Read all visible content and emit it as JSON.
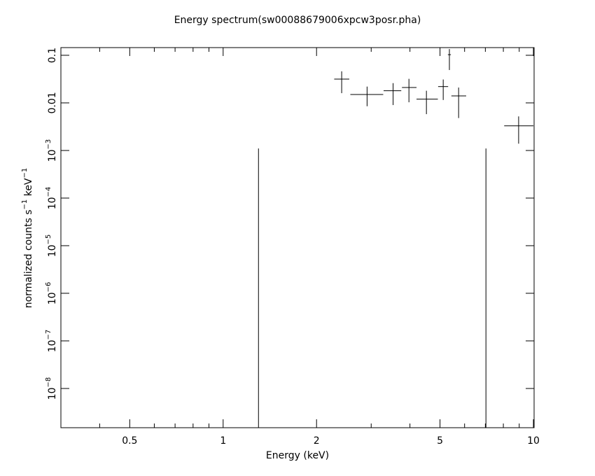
{
  "chart_data": {
    "type": "scatter",
    "title": "Energy spectrum(sw00088679006xpcw3posr.pha)",
    "xlabel": "Energy (keV)",
    "ylabel": [
      "normalized counts s",
      "−1",
      " keV",
      "−1"
    ],
    "log_x": true,
    "log_y": true,
    "xlim": [
      0.3,
      10.05
    ],
    "ylim": [
      1.5e-09,
      0.145
    ],
    "xticks": [
      0.5,
      1,
      2,
      5,
      10
    ],
    "xminor": [
      0.3,
      0.4,
      0.6,
      0.7,
      0.8,
      0.9,
      3,
      4,
      6,
      7,
      8,
      9
    ],
    "yticks": [
      0.1,
      0.01,
      {
        "value": 0.001,
        "label": "10",
        "exponent": "−3"
      },
      {
        "value": 0.0001,
        "label": "10",
        "exponent": "−4"
      },
      {
        "value": 1e-05,
        "label": "10",
        "exponent": "−5"
      },
      {
        "value": 1e-06,
        "label": "10",
        "exponent": "−6"
      },
      {
        "value": 1e-07,
        "label": "10",
        "exponent": "−7"
      },
      {
        "value": 1e-08,
        "label": "10",
        "exponent": "−8"
      }
    ],
    "color": "#000000",
    "points": {
      "x": [
        2.41,
        2.91,
        3.53,
        3.97,
        4.52,
        5.12,
        5.36,
        5.74,
        8.96
      ],
      "xlow": [
        2.28,
        2.57,
        3.29,
        3.77,
        4.2,
        4.93,
        5.3,
        5.44,
        8.05
      ],
      "xhigh": [
        2.55,
        3.28,
        3.75,
        4.2,
        4.92,
        5.31,
        5.42,
        6.07,
        10.0
      ],
      "y": [
        0.0316,
        0.015,
        0.018,
        0.021,
        0.012,
        0.022,
        0.103,
        0.014,
        0.0033
      ],
      "ylow": [
        0.016,
        0.0085,
        0.009,
        0.0103,
        0.0058,
        0.0115,
        0.049,
        0.0048,
        0.00139
      ],
      "yhigh": [
        0.046,
        0.022,
        0.026,
        0.032,
        0.018,
        0.031,
        0.135,
        0.021,
        0.0052
      ]
    },
    "vlines": {
      "x": [
        1.3,
        7.03
      ],
      "top": [
        0.0011,
        0.0011
      ]
    }
  }
}
